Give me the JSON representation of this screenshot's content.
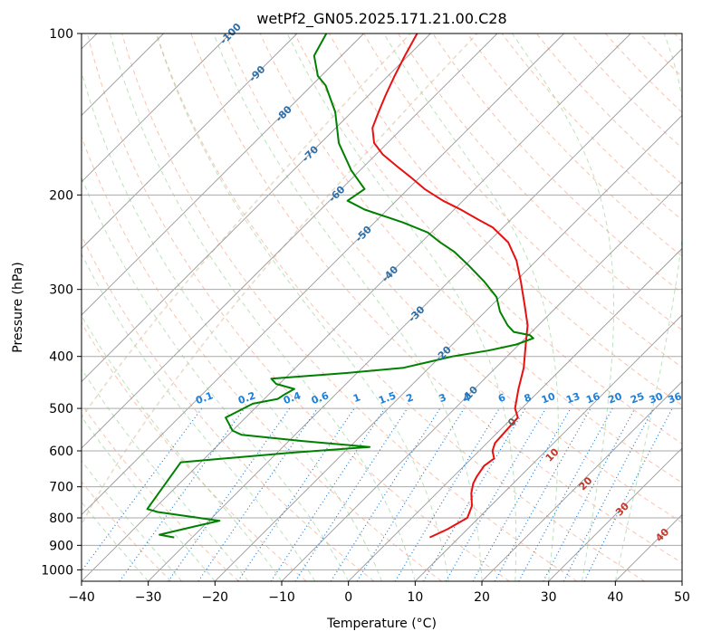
{
  "chart_data": {
    "type": "line",
    "title": "wetPf2_GN05.2025.171.21.00.C28",
    "xlabel": "Temperature (°C)",
    "ylabel": "Pressure (hPa)",
    "xlim": [
      -40,
      50
    ],
    "ylim": [
      1050,
      100
    ],
    "y_scale": "log",
    "x_ticks": [
      -40,
      -30,
      -20,
      -10,
      0,
      10,
      20,
      30,
      40,
      50
    ],
    "y_ticks": [
      100,
      200,
      300,
      400,
      500,
      600,
      700,
      800,
      900,
      1000
    ],
    "grid": true,
    "isotherm_labels": [
      "-100",
      "-90",
      "-80",
      "-70",
      "-60",
      "-50",
      "-40",
      "-30",
      "-20",
      "-10"
    ],
    "mixing_ratio_labels": [
      "0.1",
      "0.2",
      "0.4",
      "0.6",
      "1",
      "1.5",
      "2",
      "3",
      "4",
      "6",
      "8",
      "10",
      "13",
      "16",
      "20",
      "25",
      "30",
      "36"
    ],
    "dry_adiabat_labels": [
      "0",
      "10",
      "20",
      "30",
      "40"
    ],
    "series": [
      {
        "color": "#e81010",
        "points": [
          [
            5.6,
            870
          ],
          [
            7.0,
            840
          ],
          [
            8.3,
            800
          ],
          [
            7.2,
            760
          ],
          [
            5.2,
            720
          ],
          [
            4.0,
            690
          ],
          [
            3.5,
            670
          ],
          [
            3.0,
            640
          ],
          [
            3.4,
            620
          ],
          [
            2.0,
            600
          ],
          [
            1.2,
            580
          ],
          [
            1.0,
            550
          ],
          [
            0.8,
            520
          ],
          [
            -1.0,
            500
          ],
          [
            -3.4,
            460
          ],
          [
            -5.8,
            420
          ],
          [
            -9.0,
            380
          ],
          [
            -11.6,
            350
          ],
          [
            -15.2,
            320
          ],
          [
            -19.2,
            290
          ],
          [
            -23.0,
            265
          ],
          [
            -27.0,
            245
          ],
          [
            -31.5,
            230
          ],
          [
            -35.0,
            222
          ],
          [
            -39.0,
            213
          ],
          [
            -43.0,
            205
          ],
          [
            -47.5,
            195
          ],
          [
            -51.5,
            185
          ],
          [
            -55.0,
            177
          ],
          [
            -59.0,
            168
          ],
          [
            -62.0,
            160
          ],
          [
            -64.5,
            150
          ],
          [
            -66.0,
            140
          ],
          [
            -67.5,
            130
          ],
          [
            -69.0,
            120
          ],
          [
            -70.5,
            110
          ],
          [
            -72.0,
            100
          ]
        ]
      },
      {
        "color": "#008000",
        "points": [
          [
            -32.7,
            870
          ],
          [
            -35.3,
            860
          ],
          [
            -31.3,
            830
          ],
          [
            -28.4,
            810
          ],
          [
            -39.0,
            780
          ],
          [
            -41.0,
            770
          ],
          [
            -43.0,
            630
          ],
          [
            -37.0,
            620
          ],
          [
            -28.0,
            605
          ],
          [
            -17.0,
            590
          ],
          [
            -28.0,
            575
          ],
          [
            -38.0,
            560
          ],
          [
            -40.0,
            550
          ],
          [
            -43.0,
            520
          ],
          [
            -41.0,
            490
          ],
          [
            -38.0,
            480
          ],
          [
            -37.6,
            470
          ],
          [
            -37.0,
            460
          ],
          [
            -40.5,
            450
          ],
          [
            -42.0,
            440
          ],
          [
            -32.0,
            430
          ],
          [
            -23.8,
            420
          ],
          [
            -21.0,
            410
          ],
          [
            -18.2,
            400
          ],
          [
            -13.7,
            390
          ],
          [
            -10.4,
            380
          ],
          [
            -8.8,
            370
          ],
          [
            -9.8,
            365
          ],
          [
            -12.7,
            360
          ],
          [
            -14.6,
            350
          ],
          [
            -17.8,
            330
          ],
          [
            -20.5,
            310
          ],
          [
            -24.7,
            290
          ],
          [
            -29.6,
            270
          ],
          [
            -33.7,
            255
          ],
          [
            -37.2,
            245
          ],
          [
            -40.5,
            235
          ],
          [
            -45.8,
            225
          ],
          [
            -53.4,
            213
          ],
          [
            -57.3,
            205
          ],
          [
            -56.5,
            195
          ],
          [
            -61.3,
            180
          ],
          [
            -67.3,
            160
          ],
          [
            -72.5,
            140
          ],
          [
            -77.9,
            125
          ],
          [
            -80.5,
            120
          ],
          [
            -84.1,
            110
          ],
          [
            -85.6,
            100
          ]
        ]
      }
    ]
  }
}
